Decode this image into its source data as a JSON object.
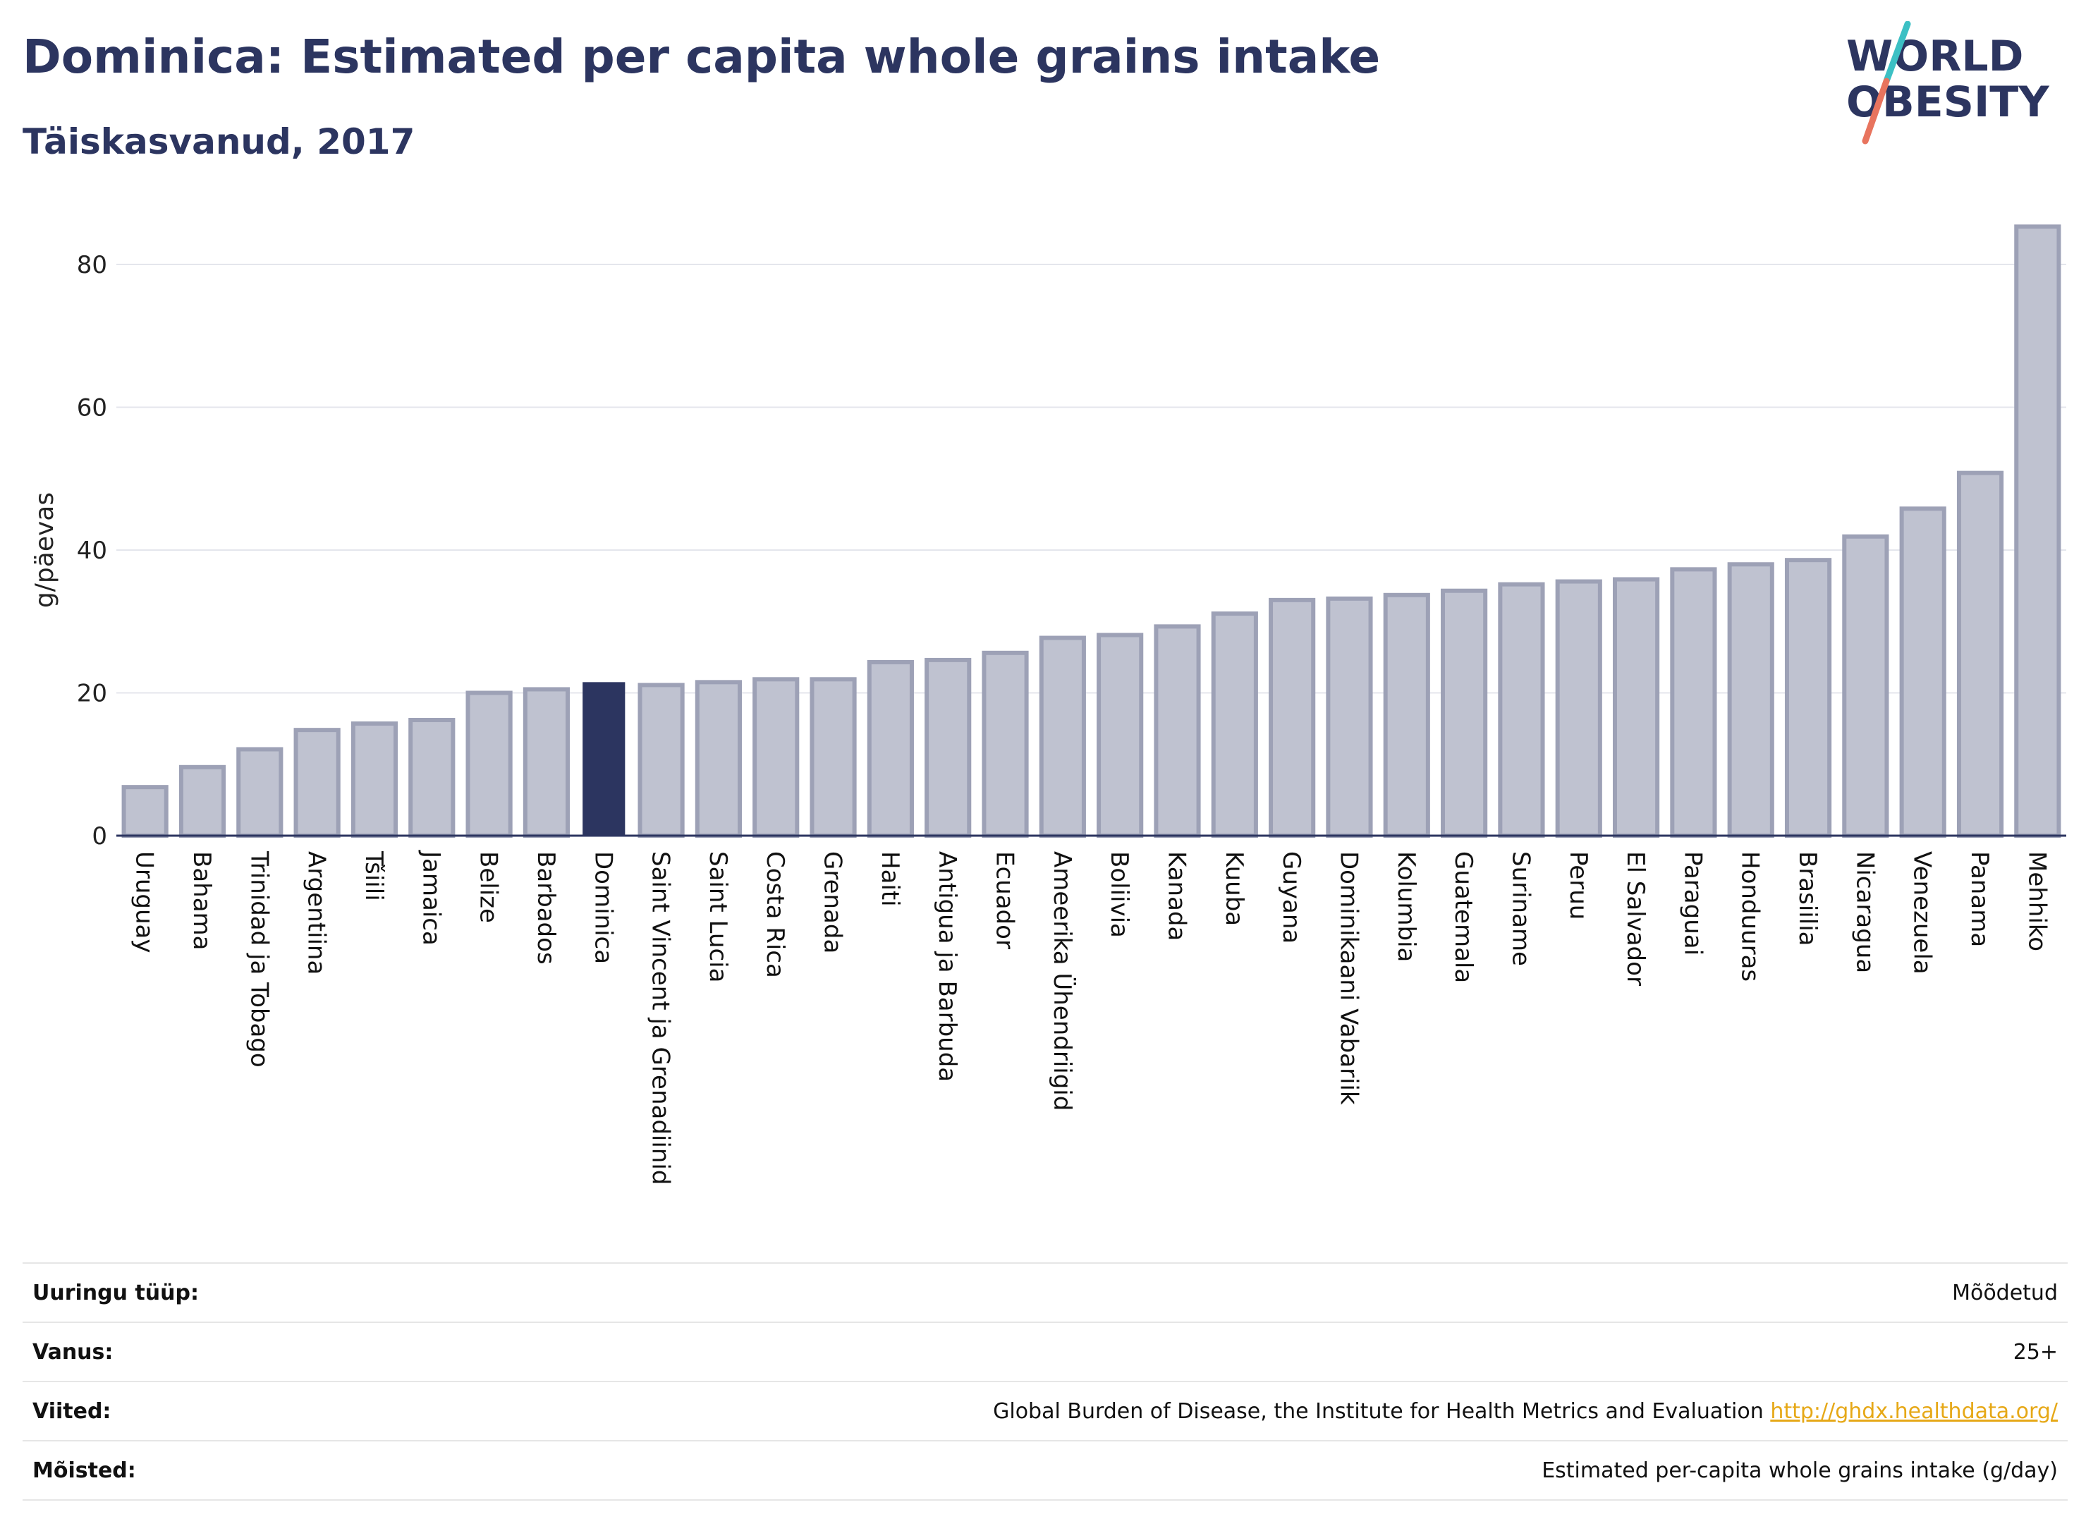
{
  "header": {
    "title": "Dominica: Estimated per capita whole grains intake",
    "subtitle": "Täiskasvanud, 2017"
  },
  "logo": {
    "line1": "WORLD",
    "line2": "OBESITY"
  },
  "colors": {
    "highlight": "#2c3560",
    "bar_fill": "#bfc2d0",
    "bar_stroke": "#9da1b6",
    "title": "#2c3560",
    "link": "#e6a817",
    "logo_teal": "#3cc0c4",
    "logo_red": "#e8745e"
  },
  "chart_data": {
    "type": "bar",
    "ylabel": "g/päevas",
    "ylim": [
      0,
      88
    ],
    "yticks": [
      0,
      20,
      40,
      60,
      80
    ],
    "grid": true,
    "highlight": "Dominica",
    "categories": [
      "Uruguay",
      "Bahama",
      "Trinidad ja Tobago",
      "Argentiina",
      "Tšiili",
      "Jamaica",
      "Belize",
      "Barbados",
      "Dominica",
      "Saint Vincent ja Grenadiinid",
      "Saint Lucia",
      "Costa Rica",
      "Grenada",
      "Haiti",
      "Antigua ja Barbuda",
      "Ecuador",
      "Ameerika Ühendriigid",
      "Boliivia",
      "Kanada",
      "Kuuba",
      "Guyana",
      "Dominikaani Vabariik",
      "Kolumbia",
      "Guatemala",
      "Suriname",
      "Peruu",
      "El Salvador",
      "Paraguai",
      "Honduuras",
      "Brasiilia",
      "Nicaragua",
      "Venezuela",
      "Panama",
      "Mehhiko"
    ],
    "values": [
      6.8,
      9.6,
      12.1,
      14.8,
      15.7,
      16.2,
      20.0,
      20.5,
      21.5,
      21.1,
      21.5,
      21.9,
      21.9,
      24.3,
      24.6,
      25.6,
      27.7,
      28.1,
      29.3,
      31.1,
      33.0,
      33.2,
      33.7,
      34.3,
      35.2,
      35.6,
      35.9,
      37.3,
      38.0,
      38.6,
      41.9,
      45.8,
      50.8,
      85.3
    ]
  },
  "meta": [
    {
      "key": "Uuringu tüüp:",
      "value": "Mõõdetud"
    },
    {
      "key": "Vanus:",
      "value": "25+"
    },
    {
      "key": "Viited:",
      "value": "Global Burden of Disease, the Institute for Health Metrics and Evaluation",
      "link": "http://ghdx.healthdata.org/"
    },
    {
      "key": "Mõisted:",
      "value": "Estimated per-capita whole grains intake (g/day)"
    }
  ]
}
